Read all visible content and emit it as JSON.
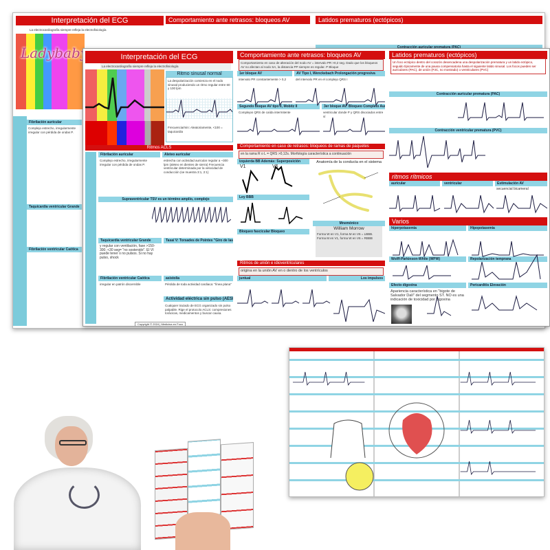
{
  "watermark": "Ladybabys",
  "back_poster": {
    "title": "Interpretación del ECG",
    "subtitle": "La electrocardiografía siempre refleja la electrofisiología",
    "section_av": "Comportamiento ante retrasos: bloqueos AV",
    "section_premature": "Latidos prematuros (ectópicos)",
    "pac_header": "Contracción auricular prematura (PAC)",
    "fa_header": "Fibrilación auricular",
    "fa_text": "Complejo estrecho, irregularmente irregular con pérdida de ondas P.",
    "tv_header": "Taquicardia ventricular Grande",
    "fv_header": "Fibrilación ventricular Caótica"
  },
  "front_poster": {
    "title": "Interpretación del ECG",
    "subtitle": "La electrocardiografía siempre refleja la electrofisiología",
    "sinus_header": "Ritmo sinusal normal",
    "sinus_text": "La despolarización comienza en el nodo sinusal produciendo un ritmo regular entre 60 y 100 lpm",
    "sinus_freq": "Frecuencia/min: Aleatoriamente, <100 = taquicardia",
    "acls_bar": "Ritmos ACLS",
    "fa_header": "Fibrilación auricular",
    "fa_text": "Complejo estrecho, irregularmente irregular con pérdida de ondas P.",
    "flutter_header": "Aleteo auricular",
    "flutter_text": "estrecha con actividad auricular regular a ~300 lpm (aleteo en dientes de sierra) Frecuencia ventricular determinada por la velocidad de conducción (se muestra 3:1, 2:1)",
    "svt_header": "Supraventricular TSV es un término amplio, complejo",
    "tv_header": "Taquicardia ventricular Grande",
    "tv_text": "y regular con ventilación, fase >150-300; <30 seg= \"no sostenido\". El VI puede tener o no pulsos. Si no hay pulso, shock",
    "torsade_header": "Tasa/ V: Torsades de Pointes \"Giro de las puntas\"",
    "fv_header": "Fibrilación ventricular Caótica",
    "fv_text": "irregular en patrón discernible",
    "asystole_header": "asistolia",
    "asystole_text": "Pérdida de toda actividad cardiaca: \"línea plana\"",
    "aesp_header": "Actividad eléctrica sin pulso (AESP)",
    "aesp_text": "Cualquier trazado de ECG organizado sin pulso palpable. Rige el protocolo ACLS: compresiones torácicas, medicamentos y buscar causa.",
    "copyright": "Copyright © 2024 | Medicina en Foco",
    "av_header": "Comportamiento ante retrasos: bloqueos AV",
    "av_text": "Comportamiento en caso de alteración del nodo AV = intervalo PR >0,2 seg. Dado que los bloqueos AV no afectan al nodo SA, la distancia PP siempre es regular. P Bloque",
    "av1_header": "1er bloque AV",
    "av1_text": "intervalo PR constantemente > 0,2",
    "av2_header": "AV Tipo I, Wenckebach Prolongación progresiva",
    "av2_text": "del intervalo PR en el complejo QRS I",
    "av3_header": "Segundo bloque AV tipo II, Mobitz II",
    "av3_text": "Complejos QRS de caída intermitente",
    "av4_header": "3er bloque AV: Bloqueo Completo Auricular y",
    "av4_text": "ventricular donde P y QRS disociados entre sí",
    "branch_header": "Comportamiento en caso de retrasos: bloqueos de ramas de paquetes",
    "branch_sub": "en la rama R o L = QRS >0,12s. Morfología característica a continuación",
    "lbbb_header": "Izquierda BB Además: Superposición",
    "rbbb_header": "Ley BBB",
    "lead_v1": "V1",
    "lead_v6": "V6",
    "anatomy_header": "Anatomía de la conducta en el sistema",
    "fascicular_header": "Bloqueo fascicular Bloqueo",
    "mnemonic_header": "Mnemónico",
    "mnemonic_title": "William Morrow",
    "mnemonic_text": "Forma W en V1, forma M en V6 = LBBB. Forma M en V1, forma W en V6 = RBBB",
    "junctional_header": "Ritmos de unión e idioventriculares",
    "junctional_sub": "origina en la unión AV en o dentro de los ventrículos",
    "junctional_box": "juntual",
    "idio_box": "Los impulsos",
    "premature_header": "Latidos prematuros (ectópicos)",
    "premature_text": "Un foco ectópico dentro del corazón desencadena una despolarización prematura y un latido ectópico, seguido típicamente de una pausa compensatoria hasta el siguiente latido sinusal. Los focos pueden ser auriculares (PAC), de unión (PJC, no mostrado) o ventriculares (PVC)",
    "pac_header": "Contracción auricular prematura (PAC)",
    "pvc_header": "Contracción ventricular prematura (PVC)",
    "rhythms_header": "ritmos rítmicos",
    "rh1": "auricular",
    "rh2": "ventricular",
    "rh3": "Estimulación AV",
    "rh3_text": "secuencial bicameral",
    "varios_header": "Varios",
    "hyperk": "hiperpotasemia",
    "hypok": "Hipopotasemia",
    "wpw": "Wolff-Parkinson-White (WPW)",
    "repol": "Repolarización temprana",
    "digoxin": "Efecto digoxina",
    "digoxin_text": "Apariencia característica en \"bigote de Salvador Dalí\" del segmento ST. NO es una indicación de toxicidad por digoxina",
    "pericard": "Pericarditis Elevación"
  },
  "colors": {
    "red": "#d40f0f",
    "cyan": "#8fd4e4",
    "trace": "#1a1a40"
  }
}
